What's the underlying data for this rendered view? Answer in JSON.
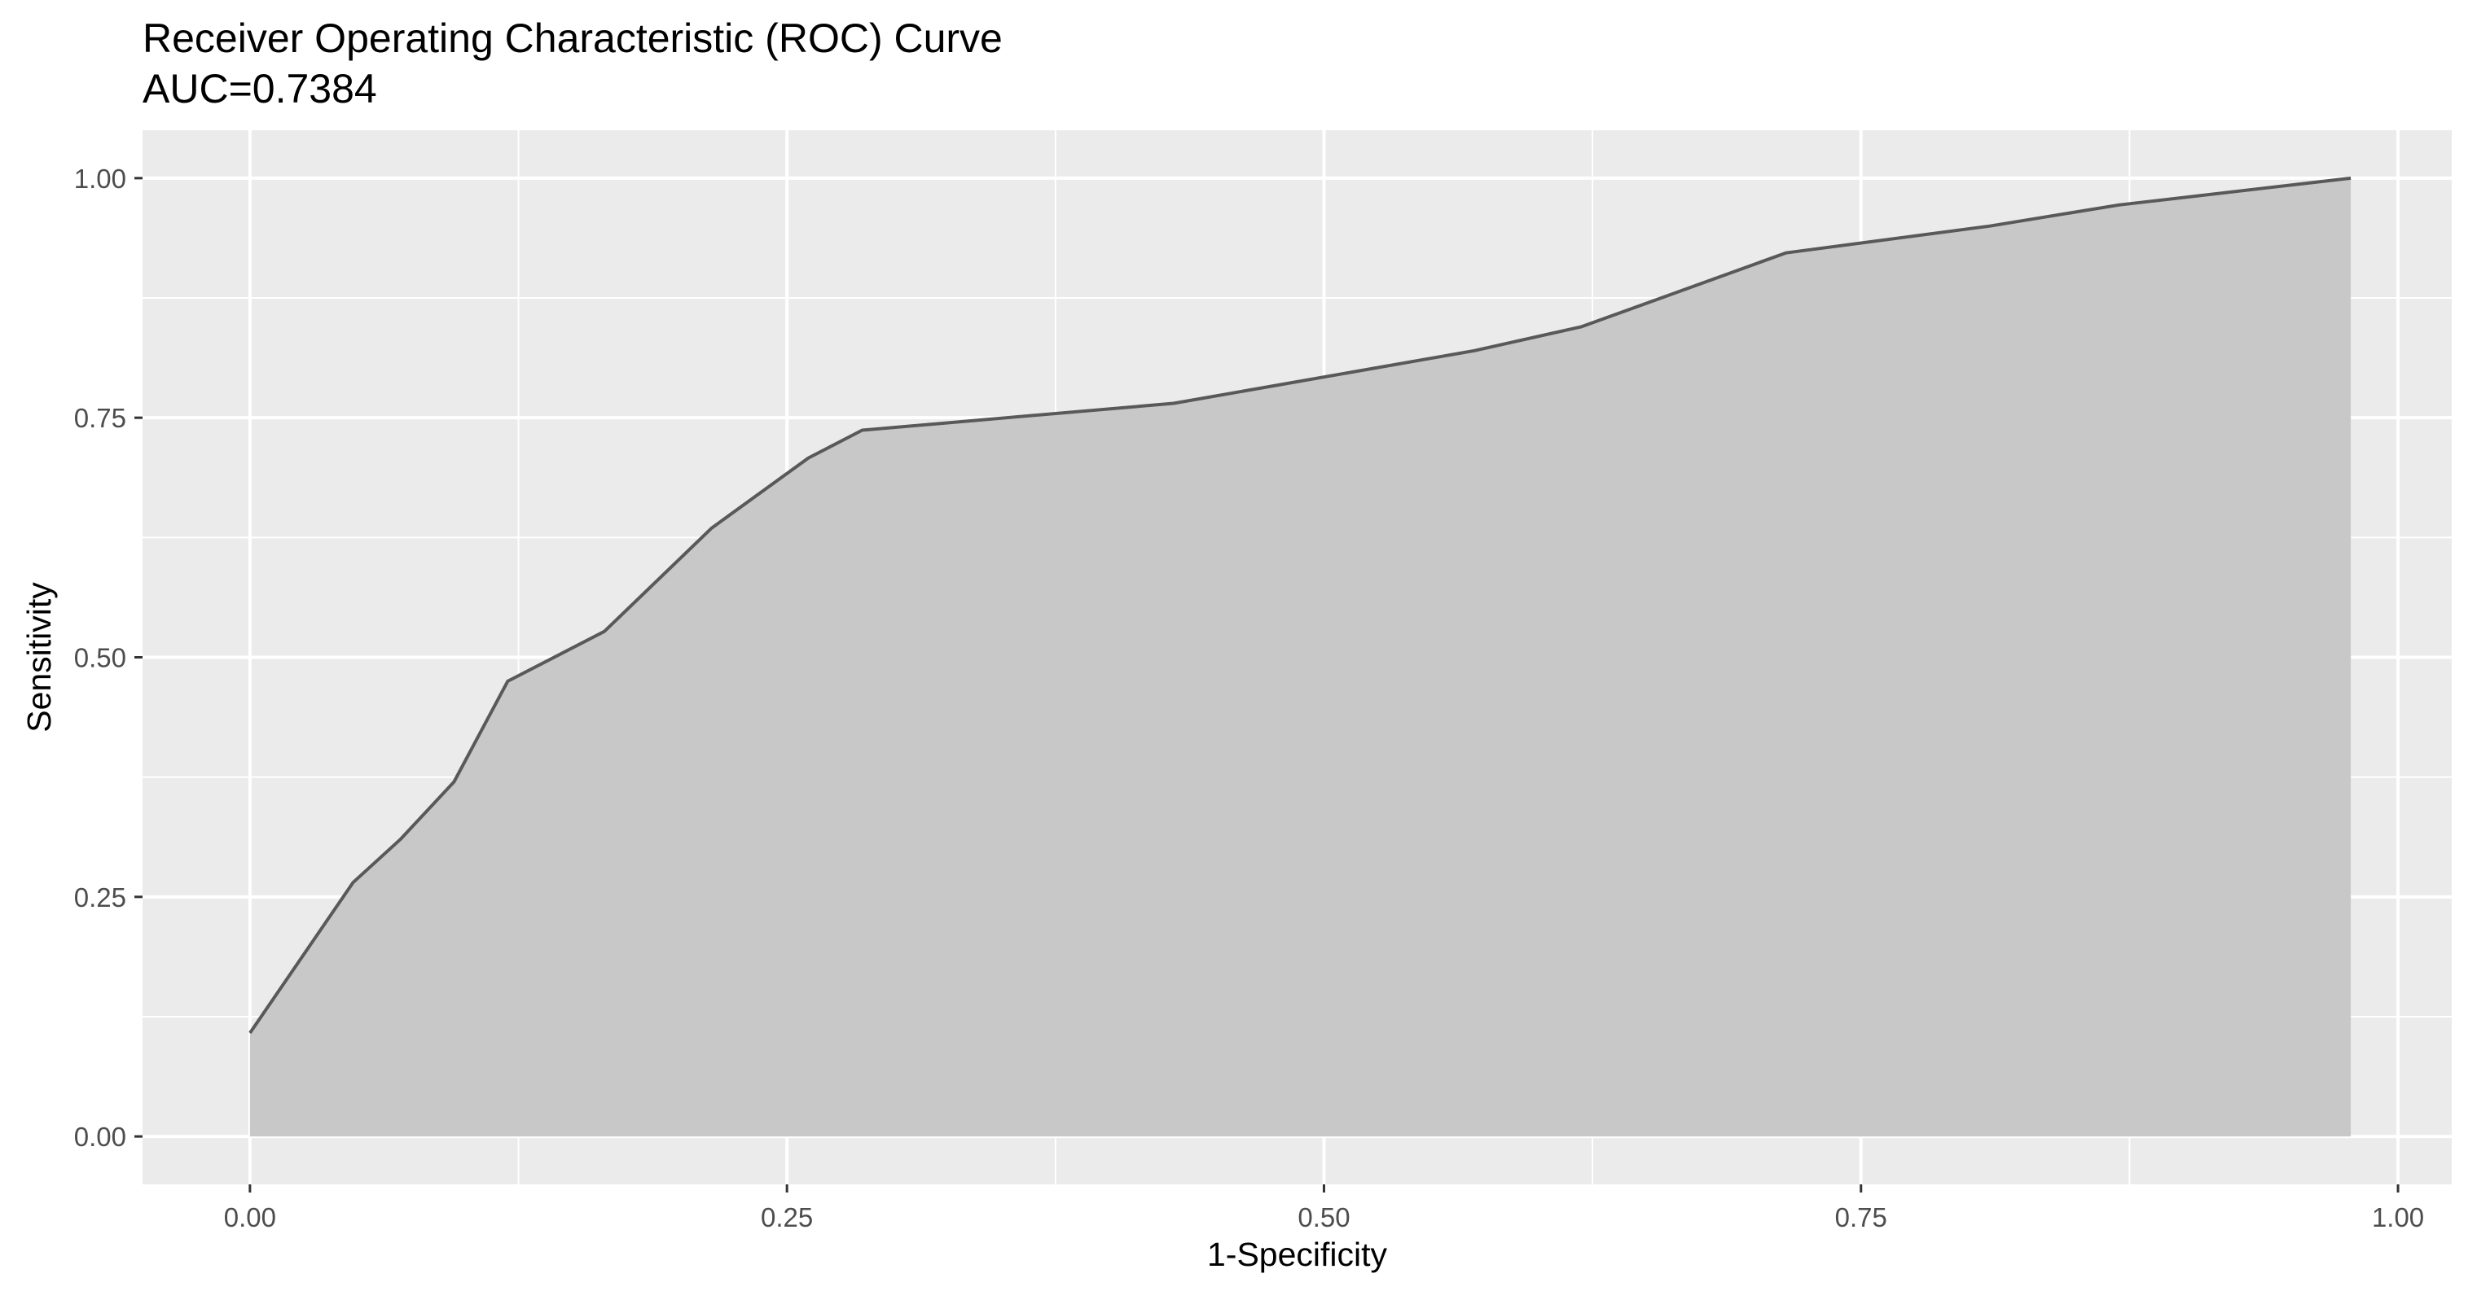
{
  "chart_data": {
    "type": "area",
    "title": "Receiver Operating Characteristic (ROC) Curve",
    "subtitle": "AUC=0.7384",
    "xlabel": "1-Specificity",
    "ylabel": "Sensitivity",
    "xlim": [
      -0.05,
      1.025
    ],
    "ylim": [
      -0.05,
      1.05
    ],
    "x_ticks": [
      "0.00",
      "0.25",
      "0.50",
      "0.75",
      "1.00"
    ],
    "y_ticks": [
      "0.00",
      "0.25",
      "0.50",
      "0.75",
      "1.00"
    ],
    "grid": true,
    "colors": {
      "panel": "#ebebeb",
      "grid": "#ffffff",
      "fill": "#c8c8c8",
      "line": "#595959"
    },
    "series": [
      {
        "x": [
          0.0,
          0.048,
          0.07,
          0.095,
          0.12,
          0.165,
          0.215,
          0.26,
          0.285,
          0.43,
          0.57,
          0.62,
          0.715,
          0.81,
          0.87,
          0.978
        ],
        "y": [
          0.108,
          0.265,
          0.31,
          0.37,
          0.475,
          0.527,
          0.635,
          0.708,
          0.737,
          0.765,
          0.82,
          0.845,
          0.922,
          0.95,
          0.972,
          1.0
        ]
      }
    ]
  }
}
